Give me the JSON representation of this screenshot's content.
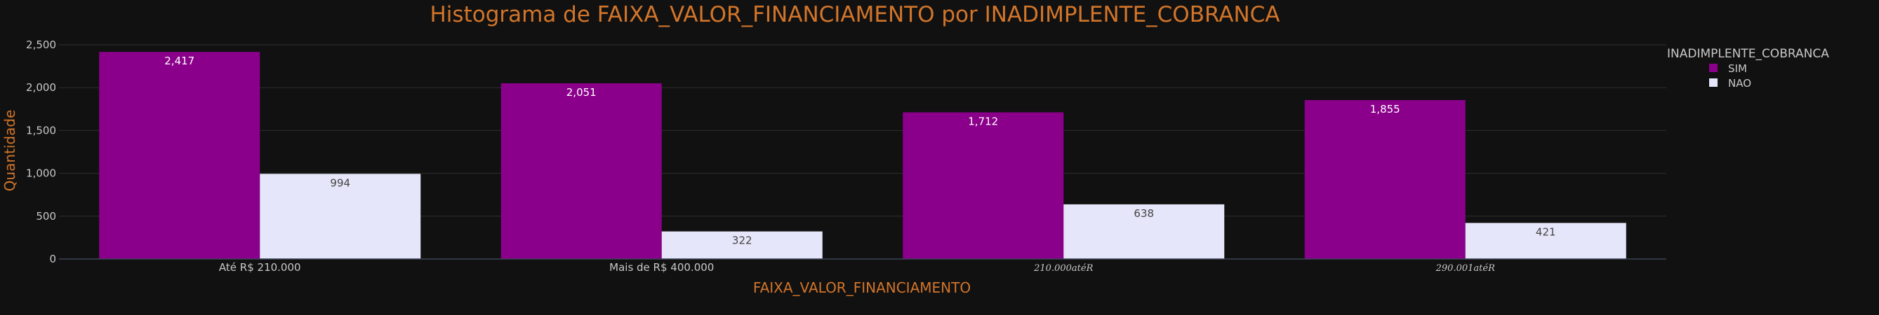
{
  "chart_data": {
    "type": "bar",
    "title": "Histograma de FAIXA_VALOR_FINANCIAMENTO por INADIMPLENTE_COBRANCA",
    "xlabel": "FAIXA_VALOR_FINANCIAMENTO",
    "ylabel": "Quantidade",
    "categories": [
      "Até R$ 210.000",
      "Mais de R$ 400.000",
      "210.000atéR",
      "290.001atéR"
    ],
    "category_math_style": [
      false,
      false,
      true,
      true
    ],
    "series": [
      {
        "name": "SIM",
        "color": "#8b008b",
        "label_color": "#ffffff",
        "values": [
          2417,
          2051,
          1712,
          1855
        ]
      },
      {
        "name": "NAO",
        "color": "#e6e6fa",
        "label_color": "#444444",
        "values": [
          994,
          322,
          638,
          421
        ]
      }
    ],
    "data_labels": {
      "SIM": [
        "2,417",
        "2,051",
        "1,712",
        "1,855"
      ],
      "NAO": [
        "994",
        "322",
        "638",
        "421"
      ]
    },
    "ylim": [
      0,
      2500
    ],
    "yticks": [
      0,
      500,
      1000,
      1500,
      2000,
      2500
    ],
    "ytick_labels": [
      "0",
      "500",
      "1,000",
      "1,500",
      "2,000",
      "2,500"
    ],
    "grid": true,
    "legend": {
      "title": "INADIMPLENTE_COBRANCA",
      "placement": "top-right"
    },
    "colors": {
      "background": "#111111",
      "grid": "#2e2e2e",
      "accent": "#d2752a"
    }
  }
}
